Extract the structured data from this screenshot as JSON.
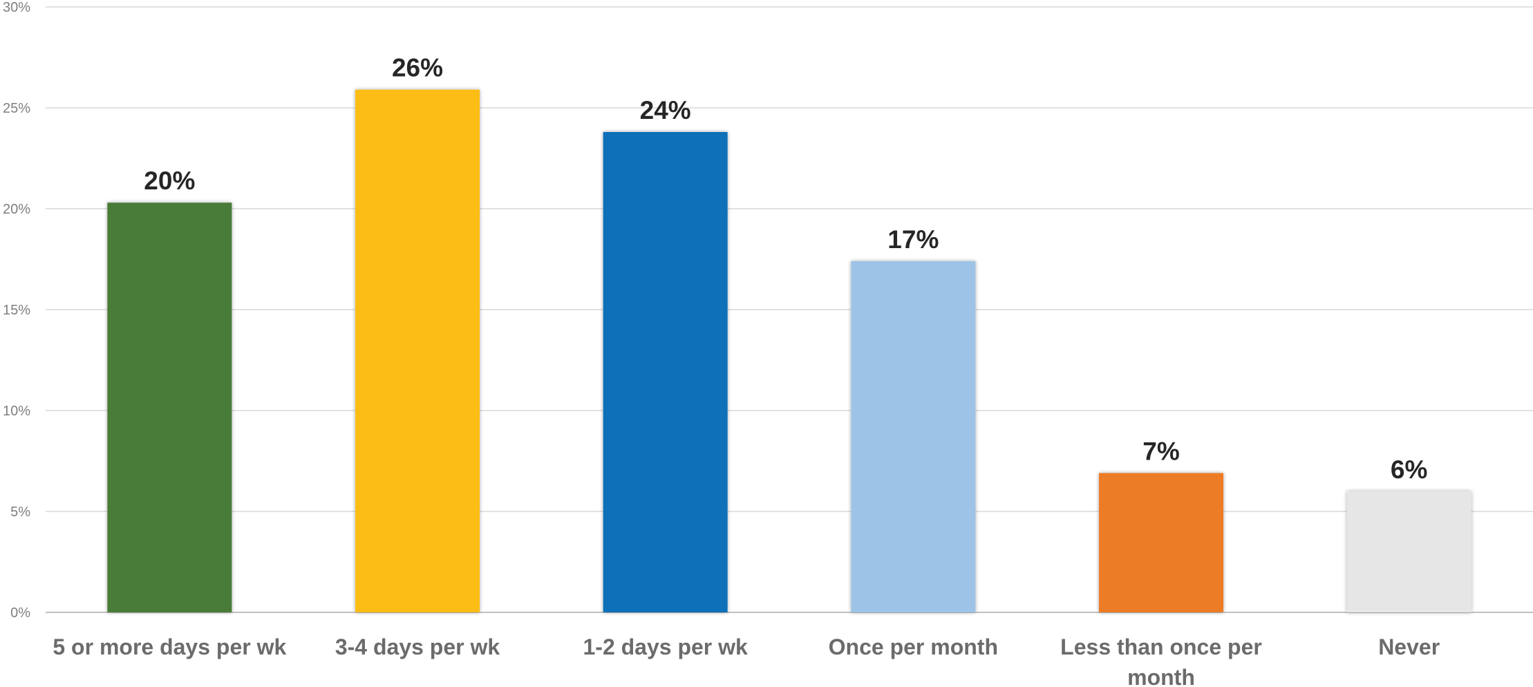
{
  "chart_data": {
    "type": "bar",
    "categories": [
      "5 or more days per wk",
      "3-4 days per wk",
      "1-2 days per wk",
      "Once per month",
      "Less than once per month",
      "Never"
    ],
    "category_lines": [
      [
        "5 or more days per wk"
      ],
      [
        "3-4 days per wk"
      ],
      [
        "1-2 days per wk"
      ],
      [
        "Once per month"
      ],
      [
        "Less than once per",
        "month"
      ],
      [
        "Never"
      ]
    ],
    "values": [
      20.3,
      25.9,
      23.8,
      17.4,
      6.9,
      6.0
    ],
    "data_labels": [
      "20%",
      "26%",
      "24%",
      "17%",
      "7%",
      "6%"
    ],
    "colors": [
      "#4a7c37",
      "#fbbd18",
      "#1070b8",
      "#9dc3e6",
      "#ed7b25",
      "#e6e6e6"
    ],
    "title": "",
    "xlabel": "",
    "ylabel": "",
    "ylim": [
      0,
      30
    ],
    "yticks": [
      0,
      5,
      10,
      15,
      20,
      25,
      30
    ],
    "ytick_labels": [
      "0%",
      "5%",
      "10%",
      "15%",
      "20%",
      "25%",
      "30%"
    ],
    "grid": true,
    "legend": "none"
  }
}
